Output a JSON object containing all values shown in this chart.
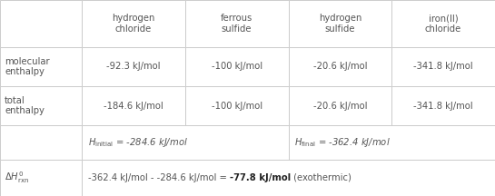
{
  "col_headers": [
    "hydrogen\nchloride",
    "ferrous\nsulfide",
    "hydrogen\nsulfide",
    "iron(II)\nchloride"
  ],
  "mol_vals": [
    "-92.3 kJ/mol",
    "-100 kJ/mol",
    "-20.6 kJ/mol",
    "-341.8 kJ/mol"
  ],
  "tot_vals": [
    "-184.6 kJ/mol",
    "-100 kJ/mol",
    "-20.6 kJ/mol",
    "-341.8 kJ/mol"
  ],
  "h_initial": "-284.6 kJ/mol",
  "h_final": "-362.4 kJ/mol",
  "delta_prefix": "-362.4 kJ/mol - -284.6 kJ/mol = ",
  "delta_bold": "-77.8 kJ/mol",
  "delta_suffix": " (exothermic)",
  "line_color": "#cccccc",
  "text_color": "#555555",
  "bg_color": "#ffffff",
  "fontsize": 7.2
}
